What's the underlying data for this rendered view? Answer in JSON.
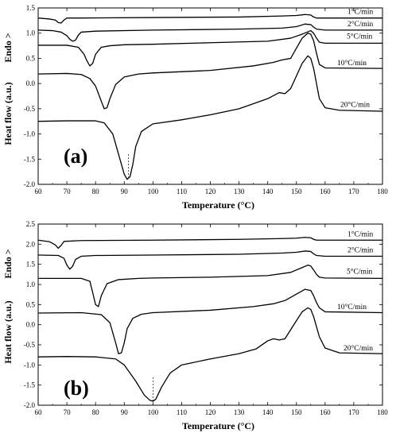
{
  "chart_data": [
    {
      "type": "line",
      "panel_label": "(a)",
      "xlabel": "Temperature (°C)",
      "ylabel": "Heat flow (a.u.)",
      "endo_label": "Endo >",
      "xlim": [
        60,
        180
      ],
      "ylim": [
        -2.0,
        1.5
      ],
      "xticks": [
        60,
        70,
        80,
        90,
        100,
        110,
        120,
        130,
        140,
        150,
        160,
        170,
        180
      ],
      "yticks": [
        -2.0,
        -1.5,
        -1.0,
        -0.5,
        0.0,
        0.5,
        1.0,
        1.5
      ],
      "grid": false,
      "dashed_marker_x": 91.5,
      "series": [
        {
          "name": "1°C/min",
          "x": [
            60,
            64,
            66,
            67,
            68,
            69,
            70,
            75,
            100,
            130,
            145,
            150,
            153,
            155,
            156,
            157,
            160,
            180
          ],
          "y": [
            1.3,
            1.28,
            1.26,
            1.21,
            1.2,
            1.26,
            1.3,
            1.3,
            1.31,
            1.32,
            1.34,
            1.35,
            1.37,
            1.36,
            1.32,
            1.3,
            1.3,
            1.3
          ]
        },
        {
          "name": "2°C/min",
          "x": [
            60,
            65,
            68,
            70,
            71,
            72,
            73,
            74,
            75,
            80,
            100,
            130,
            145,
            150,
            153,
            155,
            156,
            157,
            160,
            180
          ],
          "y": [
            1.06,
            1.05,
            1.02,
            0.95,
            0.88,
            0.84,
            0.86,
            0.96,
            1.02,
            1.04,
            1.06,
            1.08,
            1.1,
            1.13,
            1.18,
            1.17,
            1.12,
            1.08,
            1.06,
            1.06
          ]
        },
        {
          "name": "5°C/min",
          "x": [
            60,
            70,
            74,
            76,
            77,
            78,
            79,
            80,
            82,
            85,
            90,
            100,
            120,
            140,
            148,
            152,
            155,
            156,
            157,
            158,
            160,
            180
          ],
          "y": [
            0.76,
            0.76,
            0.72,
            0.58,
            0.45,
            0.35,
            0.4,
            0.58,
            0.72,
            0.75,
            0.77,
            0.78,
            0.81,
            0.84,
            0.9,
            0.98,
            1.05,
            1.0,
            0.9,
            0.82,
            0.8,
            0.8
          ]
        },
        {
          "name": "10°C/min",
          "x": [
            60,
            70,
            75,
            78,
            80,
            82,
            83,
            84,
            85,
            87,
            90,
            95,
            100,
            120,
            135,
            142,
            145,
            148,
            150,
            152,
            154,
            155,
            156,
            157,
            158,
            160,
            180
          ],
          "y": [
            0.19,
            0.2,
            0.18,
            0.1,
            -0.05,
            -0.35,
            -0.5,
            -0.48,
            -0.3,
            -0.02,
            0.13,
            0.19,
            0.21,
            0.26,
            0.35,
            0.42,
            0.47,
            0.5,
            0.7,
            0.9,
            1.0,
            0.98,
            0.85,
            0.6,
            0.38,
            0.31,
            0.3
          ]
        },
        {
          "name": "20°C/min",
          "x": [
            60,
            70,
            80,
            83,
            86,
            88,
            90,
            91,
            92,
            93,
            94,
            96,
            100,
            110,
            120,
            130,
            140,
            144,
            146,
            148,
            150,
            152,
            154,
            155,
            156,
            157,
            158,
            160,
            165,
            180
          ],
          "y": [
            -0.75,
            -0.74,
            -0.74,
            -0.78,
            -1.0,
            -1.4,
            -1.8,
            -1.9,
            -1.85,
            -1.6,
            -1.25,
            -0.95,
            -0.8,
            -0.72,
            -0.62,
            -0.5,
            -0.3,
            -0.18,
            -0.2,
            -0.1,
            0.15,
            0.4,
            0.55,
            0.5,
            0.3,
            0.0,
            -0.3,
            -0.48,
            -0.53,
            -0.55
          ]
        }
      ]
    },
    {
      "type": "line",
      "panel_label": "(b)",
      "xlabel": "Temperature (°C)",
      "ylabel": "Heat flow (a.u.)",
      "endo_label": "Endo >",
      "xlim": [
        60,
        180
      ],
      "ylim": [
        -2.0,
        2.5
      ],
      "xticks": [
        60,
        70,
        80,
        90,
        100,
        110,
        120,
        130,
        140,
        150,
        160,
        170,
        180
      ],
      "yticks": [
        -2.0,
        -1.5,
        -1.0,
        -0.5,
        0.0,
        0.5,
        1.0,
        1.5,
        2.0,
        2.5
      ],
      "grid": false,
      "dashed_marker_x": 100,
      "series": [
        {
          "name": "1°C/min",
          "x": [
            60,
            64,
            66,
            67,
            68,
            69,
            75,
            100,
            130,
            145,
            150,
            153,
            155,
            156,
            157,
            160,
            180
          ],
          "y": [
            2.1,
            2.06,
            1.98,
            1.9,
            1.97,
            2.07,
            2.09,
            2.1,
            2.12,
            2.14,
            2.15,
            2.17,
            2.16,
            2.12,
            2.1,
            2.1,
            2.1
          ]
        },
        {
          "name": "2°C/min",
          "x": [
            60,
            67,
            69,
            70,
            71,
            72,
            73,
            75,
            80,
            100,
            130,
            145,
            150,
            153,
            155,
            156,
            157,
            160,
            180
          ],
          "y": [
            1.73,
            1.72,
            1.65,
            1.48,
            1.38,
            1.45,
            1.62,
            1.7,
            1.72,
            1.73,
            1.75,
            1.78,
            1.8,
            1.83,
            1.82,
            1.76,
            1.72,
            1.7,
            1.7
          ]
        },
        {
          "name": "5°C/min",
          "x": [
            60,
            75,
            78,
            79,
            80,
            81,
            82,
            84,
            88,
            95,
            100,
            120,
            140,
            148,
            152,
            154,
            155,
            156,
            157,
            158,
            160,
            180
          ],
          "y": [
            1.15,
            1.15,
            1.08,
            0.8,
            0.5,
            0.45,
            0.72,
            1.02,
            1.12,
            1.15,
            1.16,
            1.18,
            1.22,
            1.3,
            1.42,
            1.48,
            1.46,
            1.36,
            1.25,
            1.18,
            1.16,
            1.15
          ]
        },
        {
          "name": "10°C/min",
          "x": [
            60,
            75,
            82,
            85,
            87,
            88,
            89,
            90,
            91,
            93,
            96,
            100,
            120,
            135,
            142,
            146,
            150,
            153,
            155,
            156,
            157,
            158,
            160,
            180
          ],
          "y": [
            0.29,
            0.3,
            0.25,
            0.05,
            -0.45,
            -0.72,
            -0.7,
            -0.45,
            -0.1,
            0.16,
            0.26,
            0.3,
            0.36,
            0.45,
            0.52,
            0.6,
            0.76,
            0.88,
            0.85,
            0.72,
            0.55,
            0.42,
            0.32,
            0.3
          ]
        },
        {
          "name": "20°C/min",
          "x": [
            60,
            70,
            80,
            87,
            90,
            94,
            97,
            99,
            100,
            101,
            103,
            106,
            110,
            120,
            130,
            136,
            140,
            142,
            144,
            146,
            150,
            152,
            154,
            155,
            156,
            157,
            158,
            160,
            165,
            180
          ],
          "y": [
            -0.8,
            -0.79,
            -0.8,
            -0.85,
            -1.0,
            -1.4,
            -1.75,
            -1.88,
            -1.9,
            -1.85,
            -1.55,
            -1.2,
            -1.0,
            -0.85,
            -0.72,
            -0.6,
            -0.4,
            -0.35,
            -0.38,
            -0.35,
            0.1,
            0.32,
            0.42,
            0.38,
            0.2,
            -0.05,
            -0.3,
            -0.58,
            -0.7,
            -0.72
          ]
        }
      ]
    }
  ]
}
